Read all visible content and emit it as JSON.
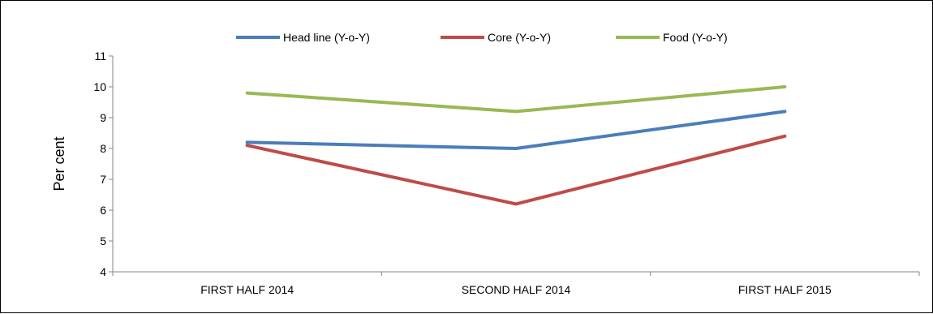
{
  "chart_data": {
    "type": "line",
    "title": "",
    "xlabel": "",
    "ylabel": "Per cent",
    "ylim": [
      4,
      11
    ],
    "yticks": [
      4,
      5,
      6,
      7,
      8,
      9,
      10,
      11
    ],
    "categories": [
      "FIRST HALF 2014",
      "SECOND HALF 2014",
      "FIRST HALF 2015"
    ],
    "grid": false,
    "legend_position": "top",
    "series": [
      {
        "name": "Head line (Y-o-Y)",
        "color": "#4a7ebb",
        "values": [
          8.2,
          8.0,
          9.2
        ]
      },
      {
        "name": "Core (Y-o-Y)",
        "color": "#be4b48",
        "values": [
          8.1,
          6.2,
          8.4
        ]
      },
      {
        "name": "Food (Y-o-Y)",
        "color": "#98b954",
        "values": [
          9.8,
          9.2,
          10.0
        ]
      }
    ]
  }
}
